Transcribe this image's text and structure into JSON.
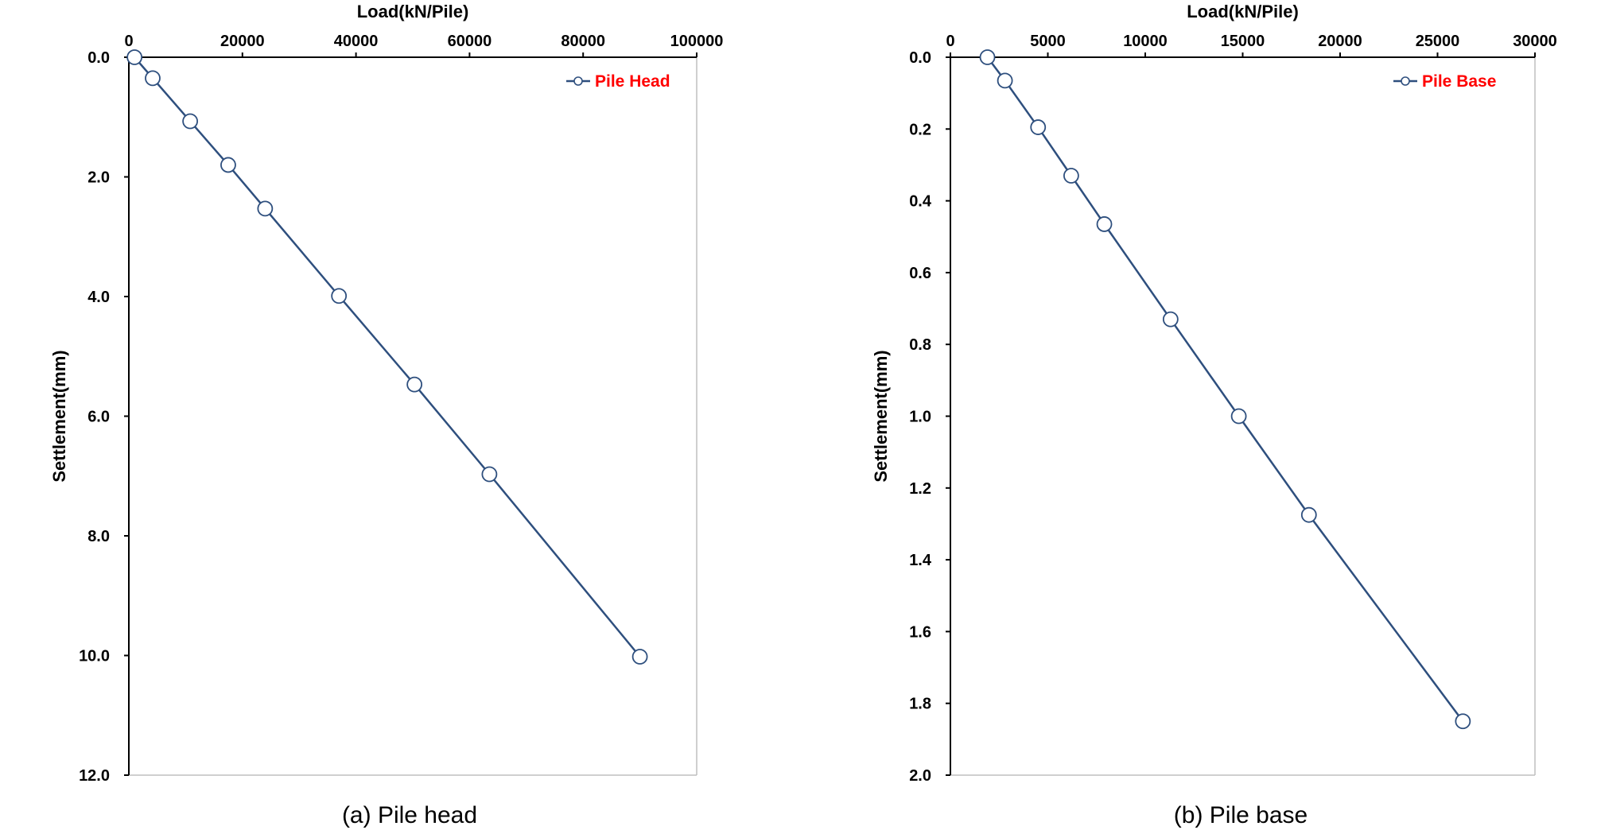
{
  "colors": {
    "series_line": "#2E4F7E",
    "legend_text": "#FF0000",
    "axis": "#000000",
    "marker_fill": "#FFFFFF"
  },
  "chart_data": [
    {
      "type": "line",
      "title": "",
      "xlabel": "Load(kN/Pile)",
      "ylabel": "Settlement(mm)",
      "xlim": [
        0,
        100000
      ],
      "ylim": [
        0,
        12
      ],
      "x_axis_position": "top",
      "y_inverted": true,
      "grid": false,
      "legend_position": "top-right",
      "x_ticks": [
        0,
        20000,
        40000,
        60000,
        80000,
        100000
      ],
      "x_tick_labels": [
        "0",
        "20000",
        "40000",
        "60000",
        "80000",
        "100000"
      ],
      "y_ticks": [
        0,
        2,
        4,
        6,
        8,
        10,
        12
      ],
      "y_tick_labels": [
        "0.0",
        "2.0",
        "4.0",
        "6.0",
        "8.0",
        "10.0",
        "12.0"
      ],
      "series": [
        {
          "name": "Pile Head",
          "x": [
            1000,
            4200,
            10800,
            17500,
            24000,
            37000,
            50300,
            63500,
            90000
          ],
          "y": [
            0.0,
            0.35,
            1.07,
            1.8,
            2.53,
            3.99,
            5.47,
            6.97,
            10.02
          ]
        }
      ],
      "caption": "(a) Pile head"
    },
    {
      "type": "line",
      "title": "",
      "xlabel": "Load(kN/Pile)",
      "ylabel": "Settlement(mm)",
      "xlim": [
        0,
        30000
      ],
      "ylim": [
        0,
        2.0
      ],
      "x_axis_position": "top",
      "y_inverted": true,
      "grid": false,
      "legend_position": "top-right",
      "x_ticks": [
        0,
        5000,
        10000,
        15000,
        20000,
        25000,
        30000
      ],
      "x_tick_labels": [
        "0",
        "5000",
        "10000",
        "15000",
        "20000",
        "25000",
        "30000"
      ],
      "y_ticks": [
        0,
        0.2,
        0.4,
        0.6,
        0.8,
        1.0,
        1.2,
        1.4,
        1.6,
        1.8,
        2.0
      ],
      "y_tick_labels": [
        "0.0",
        "0.2",
        "0.4",
        "0.6",
        "0.8",
        "1.0",
        "1.2",
        "1.4",
        "1.6",
        "1.8",
        "2.0"
      ],
      "series": [
        {
          "name": "Pile Base",
          "x": [
            1900,
            2800,
            4500,
            6200,
            7900,
            11300,
            14800,
            18400,
            26300
          ],
          "y": [
            0.0,
            0.065,
            0.195,
            0.33,
            0.465,
            0.73,
            1.0,
            1.275,
            1.85
          ]
        }
      ],
      "caption": "(b) Pile base"
    }
  ]
}
